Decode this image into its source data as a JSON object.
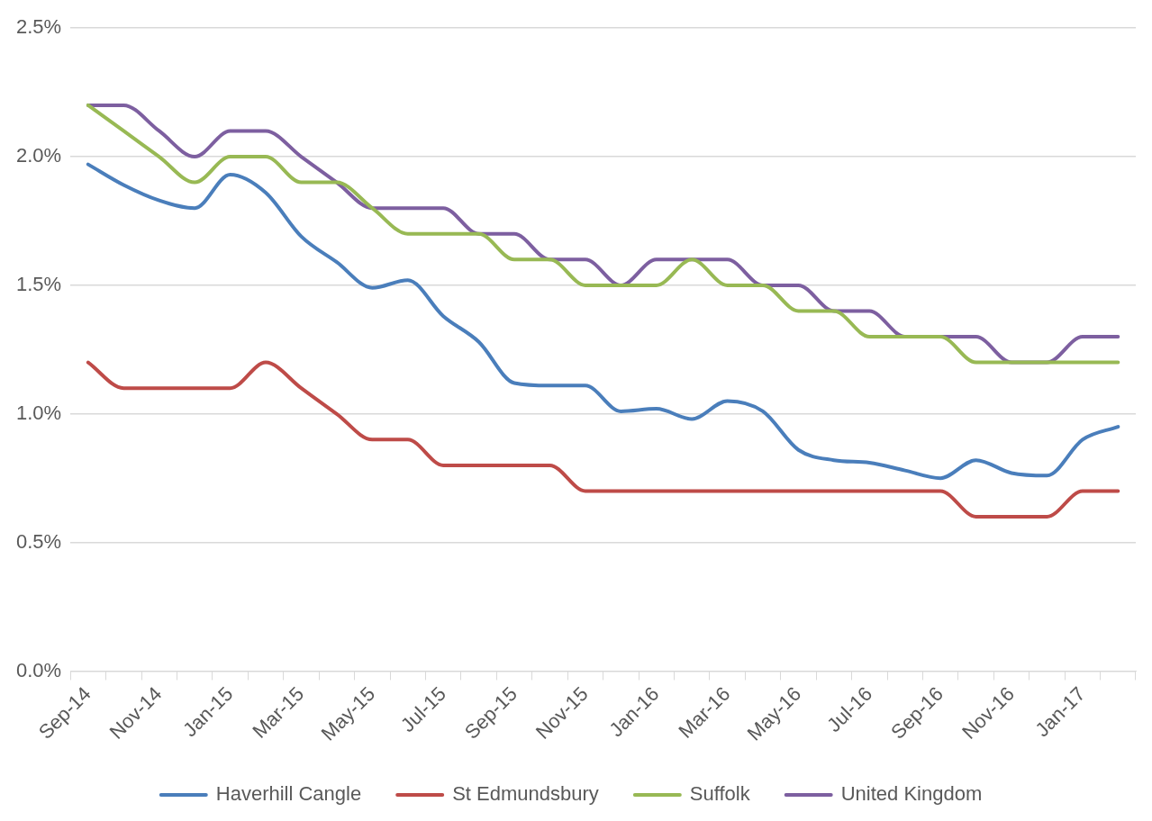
{
  "chart_data": {
    "type": "line",
    "categories": [
      "Sep-14",
      null,
      "Nov-14",
      null,
      "Jan-15",
      null,
      "Mar-15",
      null,
      "May-15",
      null,
      "Jul-15",
      null,
      "Sep-15",
      null,
      "Nov-15",
      null,
      "Jan-16",
      null,
      "Mar-16",
      null,
      "May-16",
      null,
      "Jul-16",
      null,
      "Sep-16",
      null,
      "Nov-16",
      null,
      "Jan-17",
      null
    ],
    "series": [
      {
        "name": "Haverhill Cangle",
        "color": "#4a7ebb",
        "values": [
          1.97,
          1.89,
          1.83,
          1.8,
          1.93,
          1.86,
          1.69,
          1.59,
          1.49,
          1.52,
          1.38,
          1.28,
          1.12,
          1.11,
          1.11,
          1.01,
          1.02,
          0.98,
          1.05,
          1.01,
          0.86,
          0.82,
          0.81,
          0.78,
          0.75,
          0.82,
          0.77,
          0.76,
          0.9,
          0.95
        ]
      },
      {
        "name": "St Edmundsbury",
        "color": "#be4b48",
        "values": [
          1.2,
          1.1,
          1.1,
          1.1,
          1.1,
          1.2,
          1.1,
          1.0,
          0.9,
          0.9,
          0.8,
          0.8,
          0.8,
          0.8,
          0.7,
          0.7,
          0.7,
          0.7,
          0.7,
          0.7,
          0.7,
          0.7,
          0.7,
          0.7,
          0.7,
          0.6,
          0.6,
          0.6,
          0.7,
          0.7
        ]
      },
      {
        "name": "Suffolk",
        "color": "#98b954",
        "values": [
          2.2,
          2.1,
          2.0,
          1.9,
          2.0,
          2.0,
          1.9,
          1.9,
          1.8,
          1.7,
          1.7,
          1.7,
          1.6,
          1.6,
          1.5,
          1.5,
          1.5,
          1.6,
          1.5,
          1.5,
          1.4,
          1.4,
          1.3,
          1.3,
          1.3,
          1.2,
          1.2,
          1.2,
          1.2,
          1.2
        ]
      },
      {
        "name": "United Kingdom",
        "color": "#7d5fa0",
        "values": [
          2.2,
          2.2,
          2.1,
          2.0,
          2.1,
          2.1,
          2.0,
          1.9,
          1.8,
          1.8,
          1.8,
          1.7,
          1.7,
          1.6,
          1.6,
          1.5,
          1.6,
          1.6,
          1.6,
          1.5,
          1.5,
          1.4,
          1.4,
          1.3,
          1.3,
          1.3,
          1.2,
          1.2,
          1.3,
          1.3
        ]
      }
    ],
    "ylim": [
      0,
      2.5
    ],
    "yticks": [
      {
        "value": 0,
        "label": "0.0%"
      },
      {
        "value": 0.5,
        "label": "0.5%"
      },
      {
        "value": 1,
        "label": "1.0%"
      },
      {
        "value": 1.5,
        "label": "1.5%"
      },
      {
        "value": 2,
        "label": "2.0%"
      },
      {
        "value": 2.5,
        "label": "2.5%"
      }
    ],
    "grid": "y",
    "legend": "bottom",
    "marker": "none",
    "line_style": "solid"
  }
}
